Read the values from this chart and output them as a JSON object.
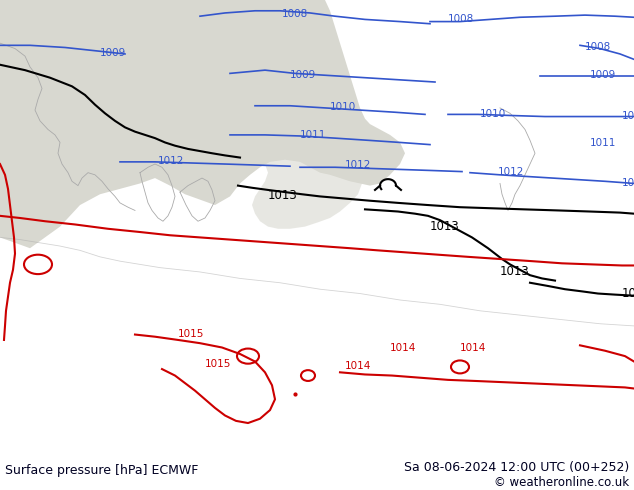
{
  "title_left": "Surface pressure [hPa] ECMWF",
  "title_right": "Sa 08-06-2024 12:00 UTC (00+252)",
  "copyright": "© weatheronline.co.uk",
  "bg_land_light": "#c8f0a0",
  "bg_sea_grey": "#d8d8d0",
  "bg_land_dark": "#b8e890",
  "bar_bottom_bg": "#ffffff",
  "isobar_blue": "#3355cc",
  "isobar_black": "#000000",
  "isobar_red": "#cc0000",
  "coast_color": "#aaaaaa",
  "title_fontsize": 9.0,
  "copyright_fontsize": 8.5,
  "isobar_fontsize": 7.5,
  "isobar_lw": 1.2
}
